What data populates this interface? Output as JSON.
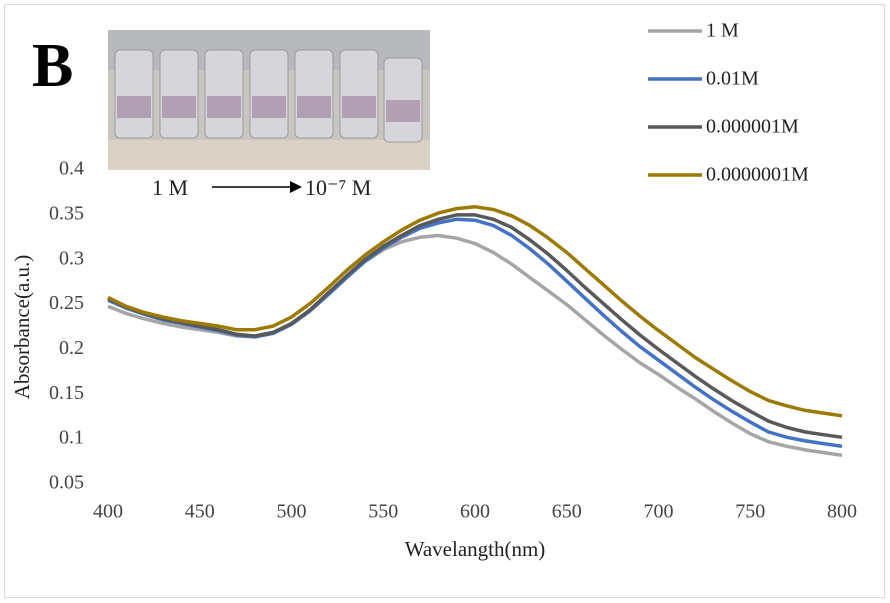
{
  "chart_data": {
    "type": "line",
    "panel_label": "B",
    "inset_label_start": "1 M",
    "inset_label_end": "10⁻⁷ M",
    "x_label": "Wavelangth(nm)",
    "y_label": "Absorbance(a.u.)",
    "x": [
      400,
      410,
      420,
      430,
      440,
      450,
      460,
      470,
      480,
      490,
      500,
      510,
      520,
      530,
      540,
      550,
      560,
      570,
      580,
      590,
      600,
      610,
      620,
      630,
      640,
      650,
      660,
      670,
      680,
      690,
      700,
      710,
      720,
      730,
      740,
      750,
      760,
      770,
      780,
      790,
      800
    ],
    "series": [
      {
        "name": "1 M",
        "color": "#a5a5a5",
        "values": [
          0.248,
          0.24,
          0.234,
          0.229,
          0.225,
          0.222,
          0.219,
          0.215,
          0.214,
          0.218,
          0.228,
          0.243,
          0.262,
          0.281,
          0.298,
          0.311,
          0.32,
          0.325,
          0.327,
          0.324,
          0.318,
          0.308,
          0.295,
          0.28,
          0.265,
          0.25,
          0.233,
          0.216,
          0.2,
          0.185,
          0.172,
          0.158,
          0.145,
          0.131,
          0.118,
          0.106,
          0.097,
          0.092,
          0.088,
          0.085,
          0.082
        ]
      },
      {
        "name": "0.01M",
        "color": "#4472c4",
        "values": [
          0.255,
          0.246,
          0.239,
          0.233,
          0.229,
          0.225,
          0.221,
          0.216,
          0.214,
          0.218,
          0.228,
          0.243,
          0.261,
          0.28,
          0.298,
          0.313,
          0.325,
          0.335,
          0.341,
          0.345,
          0.344,
          0.338,
          0.327,
          0.312,
          0.295,
          0.276,
          0.257,
          0.238,
          0.22,
          0.203,
          0.188,
          0.173,
          0.158,
          0.144,
          0.131,
          0.119,
          0.108,
          0.102,
          0.098,
          0.095,
          0.092
        ]
      },
      {
        "name": "0.000001M",
        "color": "#595959",
        "values": [
          0.257,
          0.247,
          0.24,
          0.234,
          0.23,
          0.226,
          0.222,
          0.217,
          0.215,
          0.219,
          0.229,
          0.244,
          0.263,
          0.282,
          0.3,
          0.315,
          0.327,
          0.338,
          0.345,
          0.35,
          0.35,
          0.345,
          0.336,
          0.322,
          0.306,
          0.288,
          0.269,
          0.251,
          0.233,
          0.216,
          0.2,
          0.185,
          0.17,
          0.156,
          0.143,
          0.131,
          0.12,
          0.113,
          0.108,
          0.105,
          0.102
        ]
      },
      {
        "name": "0.0000001M",
        "color": "#9c7a00",
        "values": [
          0.258,
          0.248,
          0.241,
          0.236,
          0.232,
          0.229,
          0.226,
          0.222,
          0.222,
          0.226,
          0.236,
          0.251,
          0.269,
          0.288,
          0.305,
          0.32,
          0.333,
          0.344,
          0.352,
          0.357,
          0.359,
          0.356,
          0.349,
          0.338,
          0.324,
          0.308,
          0.29,
          0.272,
          0.254,
          0.237,
          0.221,
          0.206,
          0.191,
          0.178,
          0.165,
          0.153,
          0.143,
          0.137,
          0.132,
          0.129,
          0.126
        ]
      }
    ],
    "xlim": [
      400,
      800
    ],
    "xticks": [
      400,
      450,
      500,
      550,
      600,
      650,
      700,
      750,
      800
    ],
    "ylim": [
      0.05,
      0.4
    ],
    "yticks": [
      0.05,
      0.1,
      0.15,
      0.2,
      0.25,
      0.3,
      0.35,
      0.4
    ],
    "grid": false,
    "legend_position": "top-right"
  }
}
